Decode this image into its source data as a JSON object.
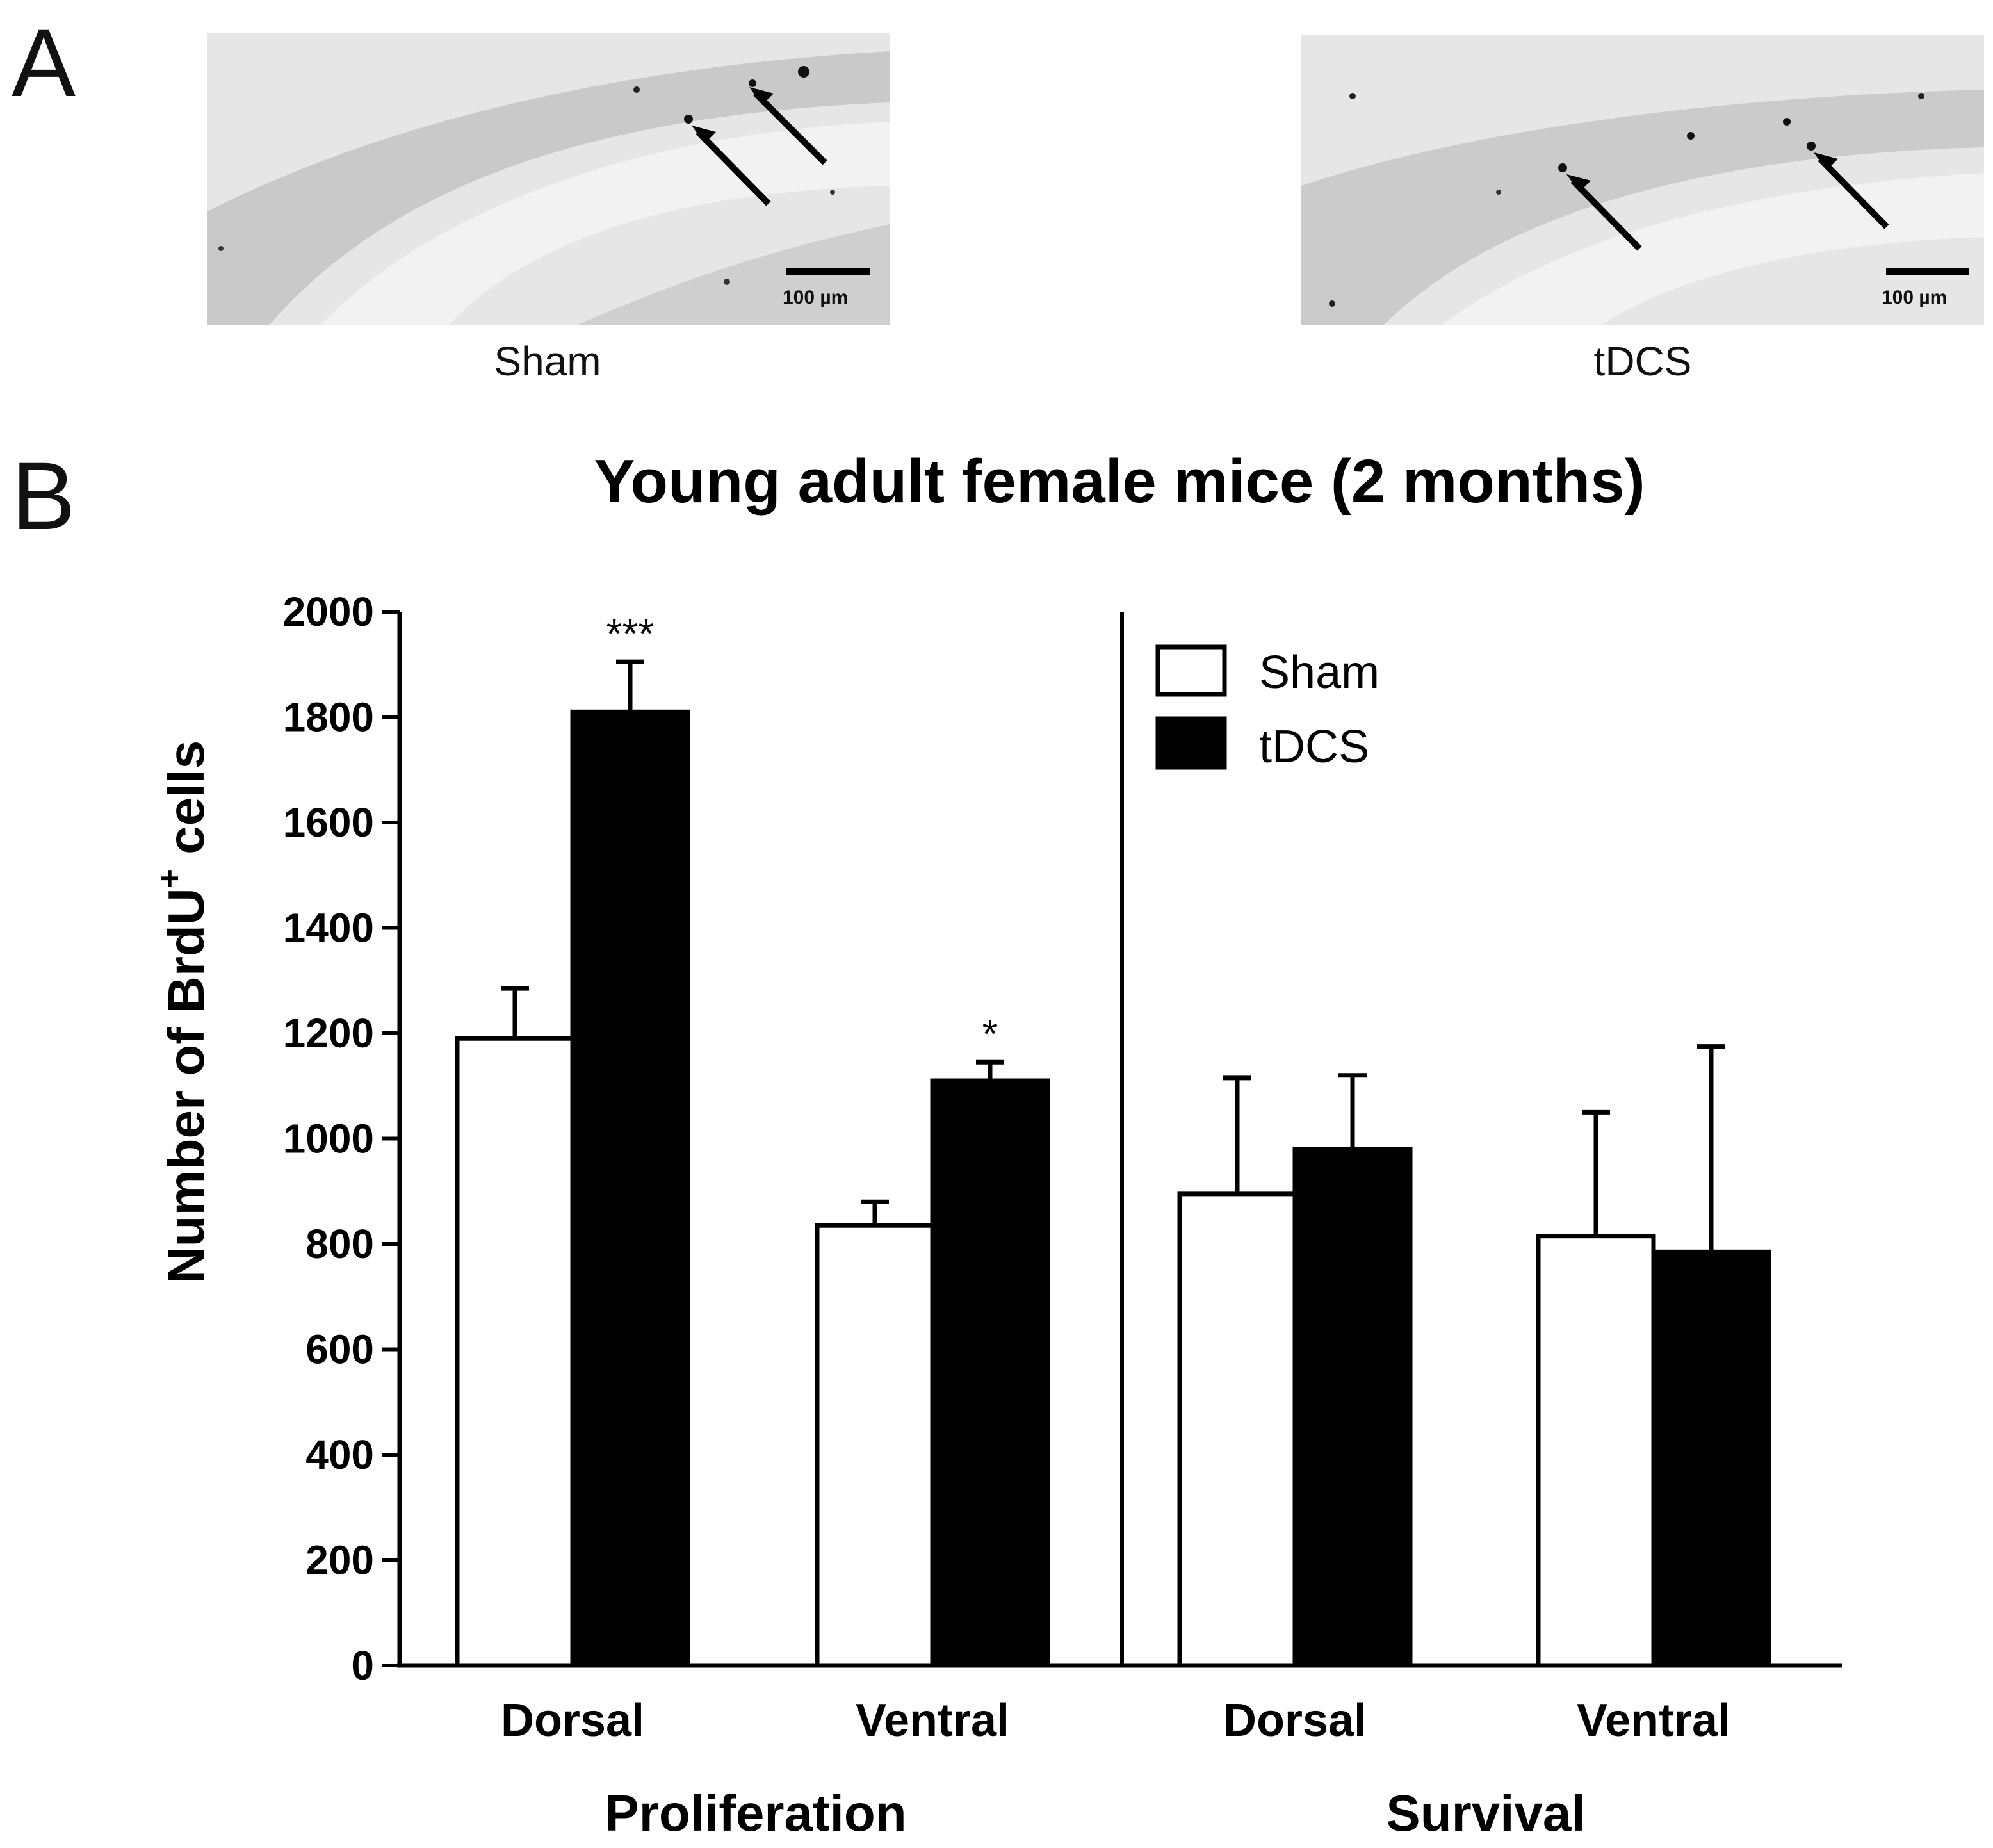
{
  "panel_a": {
    "letter": "A",
    "images": [
      {
        "caption": "Sham",
        "scale_bar": "100 µm"
      },
      {
        "caption": "tDCS",
        "scale_bar": "100 µm"
      }
    ]
  },
  "panel_b": {
    "letter": "B"
  },
  "chart_data": {
    "type": "bar",
    "title": "Young adult female mice (2 months)",
    "ylabel": "Number of BrdU",
    "ylabel_superscript": "+",
    "ylabel_suffix": " cells",
    "ylim": [
      0,
      2000
    ],
    "yticks": [
      "0",
      "200",
      "400",
      "600",
      "800",
      "1000",
      "1200",
      "1400",
      "1600",
      "1800",
      "2000"
    ],
    "groups": [
      {
        "name": "Proliferation",
        "categories": [
          "Dorsal",
          "Ventral"
        ]
      },
      {
        "name": "Survival",
        "categories": [
          "Dorsal",
          "Ventral"
        ]
      }
    ],
    "categories": [
      "Dorsal",
      "Ventral",
      "Dorsal",
      "Ventral"
    ],
    "series": [
      {
        "name": "Sham",
        "fill": "#ffffff",
        "values": [
          1190,
          835,
          895,
          815
        ],
        "errors": [
          95,
          45,
          220,
          235
        ]
      },
      {
        "name": "tDCS",
        "fill": "#000000",
        "values": [
          1810,
          1110,
          980,
          785
        ],
        "errors": [
          95,
          35,
          140,
          390
        ]
      }
    ],
    "annotations": [
      {
        "category_index": 0,
        "series_index": 1,
        "text": "***"
      },
      {
        "category_index": 1,
        "series_index": 1,
        "text": "*"
      }
    ],
    "legend_position": "top-right",
    "grid": false
  }
}
